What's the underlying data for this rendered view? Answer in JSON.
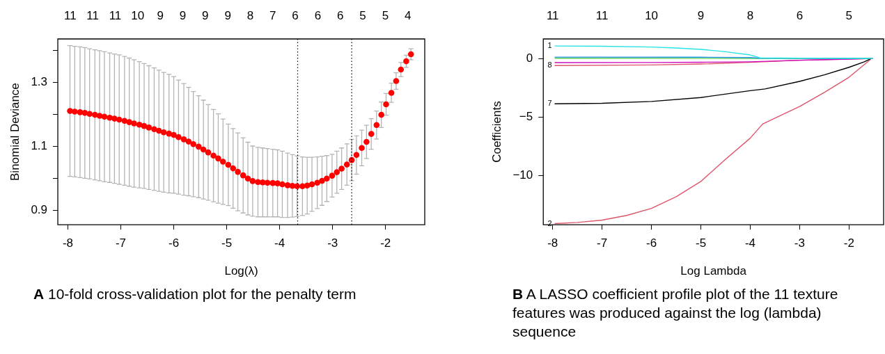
{
  "chart_data": [
    {
      "type": "scatter",
      "xlabel": "Log(λ)",
      "ylabel": "Binomial Deviance",
      "color": "#ff0000",
      "marker": "circle",
      "xlim": [
        -8.19,
        -1.26
      ],
      "ylim": [
        0.854,
        1.437
      ],
      "xticks": [
        -8,
        -7,
        -6,
        -5,
        -4,
        -3,
        -2
      ],
      "yticks": [
        {
          "value": 0.9,
          "label": "0.9"
        },
        {
          "value": 1.0,
          "label": null
        },
        {
          "value": 1.1,
          "label": "1.1"
        },
        {
          "value": 1.2,
          "label": null
        },
        {
          "value": 1.3,
          "label": "1.3"
        },
        {
          "value": 1.4,
          "label": null
        }
      ],
      "x": [
        -7.96,
        -7.87,
        -7.77,
        -7.68,
        -7.59,
        -7.49,
        -7.4,
        -7.31,
        -7.21,
        -7.12,
        -7.03,
        -6.93,
        -6.84,
        -6.75,
        -6.65,
        -6.56,
        -6.47,
        -6.37,
        -6.28,
        -6.19,
        -6.09,
        -6.0,
        -5.91,
        -5.81,
        -5.72,
        -5.63,
        -5.53,
        -5.44,
        -5.35,
        -5.25,
        -5.16,
        -5.07,
        -4.97,
        -4.88,
        -4.79,
        -4.69,
        -4.6,
        -4.51,
        -4.41,
        -4.32,
        -4.23,
        -4.13,
        -4.04,
        -3.95,
        -3.85,
        -3.76,
        -3.67,
        -3.57,
        -3.48,
        -3.39,
        -3.29,
        -3.2,
        -3.11,
        -3.01,
        -2.92,
        -2.83,
        -2.73,
        -2.64,
        -2.55,
        -2.45,
        -2.36,
        -2.27,
        -2.17,
        -2.08,
        -1.99,
        -1.89,
        -1.8,
        -1.71,
        -1.61,
        -1.52
      ],
      "values": [
        1.211,
        1.209,
        1.207,
        1.205,
        1.202,
        1.199,
        1.196,
        1.193,
        1.19,
        1.187,
        1.184,
        1.18,
        1.176,
        1.172,
        1.168,
        1.164,
        1.159,
        1.154,
        1.149,
        1.144,
        1.14,
        1.136,
        1.129,
        1.122,
        1.115,
        1.107,
        1.099,
        1.09,
        1.081,
        1.071,
        1.062,
        1.052,
        1.042,
        1.031,
        1.02,
        1.009,
        0.999,
        0.991,
        0.988,
        0.987,
        0.986,
        0.985,
        0.984,
        0.981,
        0.978,
        0.976,
        0.975,
        0.975,
        0.977,
        0.981,
        0.986,
        0.992,
        0.999,
        1.008,
        1.019,
        1.03,
        1.043,
        1.057,
        1.073,
        1.095,
        1.114,
        1.139,
        1.167,
        1.199,
        1.232,
        1.268,
        1.305,
        1.341,
        1.367,
        1.389
      ],
      "errors": [
        0.205,
        0.205,
        0.205,
        0.205,
        0.204,
        0.204,
        0.204,
        0.204,
        0.203,
        0.203,
        0.203,
        0.202,
        0.201,
        0.2,
        0.198,
        0.196,
        0.194,
        0.192,
        0.19,
        0.188,
        0.186,
        0.183,
        0.179,
        0.175,
        0.17,
        0.165,
        0.16,
        0.155,
        0.15,
        0.145,
        0.14,
        0.134,
        0.128,
        0.125,
        0.122,
        0.118,
        0.114,
        0.11,
        0.109,
        0.108,
        0.107,
        0.106,
        0.105,
        0.104,
        0.101,
        0.098,
        0.095,
        0.092,
        0.089,
        0.085,
        0.081,
        0.077,
        0.072,
        0.067,
        0.066,
        0.065,
        0.065,
        0.065,
        0.06,
        0.056,
        0.052,
        0.048,
        0.044,
        0.04,
        0.034,
        0.03,
        0.026,
        0.022,
        0.019,
        0.017
      ],
      "ref_lines": [
        {
          "axis": "x",
          "value": -3.66,
          "color": "#000000",
          "line_style": "dotted"
        },
        {
          "axis": "x",
          "value": -2.64,
          "color": "#000000",
          "line_style": "dotted"
        }
      ],
      "annotations": [
        "A 10-fold cross-validation plot for the penalty term",
        "11",
        "11",
        "11",
        "10",
        "9",
        "9",
        "9",
        "9",
        "8",
        "7",
        "6",
        "6",
        "6",
        "5",
        "5",
        "4"
      ]
    },
    {
      "type": "line",
      "xlabel": "Log Lambda",
      "ylabel": "Coefficients",
      "xlim": [
        -8.19,
        -1.3
      ],
      "ylim": [
        -14.2,
        1.67
      ],
      "xticks": [
        -8,
        -7,
        -6,
        -5,
        -4,
        -3,
        -2
      ],
      "yticks": [
        {
          "value": 0,
          "label": "0"
        },
        {
          "value": -5,
          "label": "−5"
        },
        {
          "value": -10,
          "label": "−10"
        }
      ],
      "series": [
        {
          "name": "1",
          "color": "#28e2e5",
          "x": [
            -7.96,
            -7,
            -6,
            -5.5,
            -5,
            -4.5,
            -4,
            -3.8,
            -3,
            -2,
            -1.52
          ],
          "values": [
            1.07,
            1.05,
            0.98,
            0.9,
            0.78,
            0.58,
            0.3,
            0.05,
            0.03,
            0.01,
            0
          ]
        },
        {
          "color": "#2297e6",
          "x": [
            -7.96,
            -5,
            -4,
            -3.8,
            -1.52
          ],
          "values": [
            0.12,
            0.11,
            0.08,
            0.02,
            0
          ]
        },
        {
          "color": "#61d04f",
          "x": [
            -7.96,
            -4,
            -1.52
          ],
          "values": [
            0.02,
            0.01,
            0
          ]
        },
        {
          "color": "#cd0bbc",
          "x": [
            -7.96,
            -6,
            -5,
            -4,
            -3,
            -2,
            -1.52
          ],
          "values": [
            -0.35,
            -0.34,
            -0.32,
            -0.28,
            -0.15,
            -0.05,
            0
          ]
        },
        {
          "name": "8",
          "color": "#df536b",
          "x": [
            -7.96,
            -6,
            -5,
            -4,
            -3,
            -2,
            -1.52
          ],
          "values": [
            -0.6,
            -0.55,
            -0.47,
            -0.33,
            -0.15,
            -0.05,
            0
          ]
        },
        {
          "name": "7",
          "color": "#000000",
          "x": [
            -7.96,
            -7,
            -6,
            -5,
            -4,
            -3.7,
            -3,
            -2.5,
            -2,
            -1.7,
            -1.55
          ],
          "values": [
            -3.87,
            -3.82,
            -3.67,
            -3.33,
            -2.75,
            -2.6,
            -1.95,
            -1.4,
            -0.75,
            -0.3,
            0
          ]
        },
        {
          "name": "2",
          "color": "#df536b",
          "x": [
            -7.96,
            -7.5,
            -7,
            -6.5,
            -6,
            -5.5,
            -5,
            -4.5,
            -4,
            -3.75,
            -3.5,
            -3,
            -2.5,
            -2,
            -1.8,
            -1.6,
            -1.55
          ],
          "values": [
            -14.1,
            -14.0,
            -13.8,
            -13.4,
            -12.8,
            -11.8,
            -10.5,
            -8.6,
            -6.8,
            -5.6,
            -5.1,
            -4.1,
            -2.9,
            -1.6,
            -0.9,
            -0.2,
            0
          ]
        }
      ],
      "annotations": [
        "B A LASSO coefficient profile plot of the 11 texture features was produced against the log (lambda) sequence",
        "11",
        "11",
        "10",
        "9",
        "8",
        "6",
        "5"
      ]
    }
  ]
}
